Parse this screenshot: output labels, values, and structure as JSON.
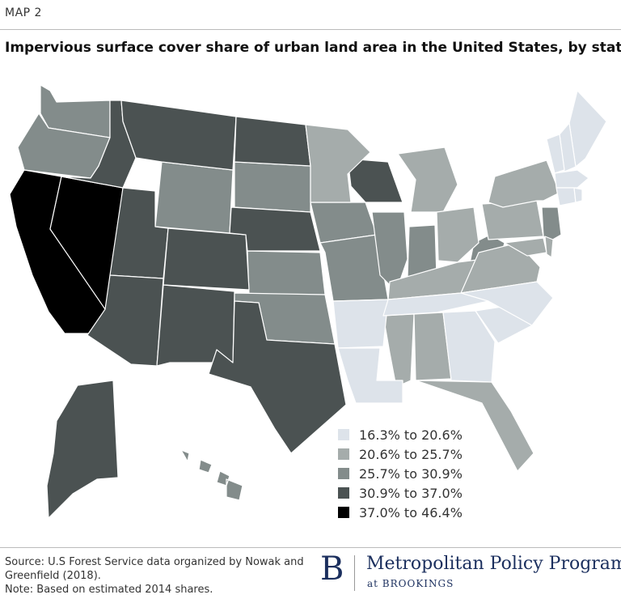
{
  "header": {
    "kicker": "MAP 2",
    "title": "Impervious surface cover share of urban land area in the United States, by state"
  },
  "legend": [
    {
      "label": "16.3% to 20.6%",
      "color": "#dde3ea"
    },
    {
      "label": "20.6% to 25.7%",
      "color": "#a5acab"
    },
    {
      "label": "25.7% to 30.9%",
      "color": "#838c8b"
    },
    {
      "label": "30.9% to 37.0%",
      "color": "#4b5252"
    },
    {
      "label": "37.0% to 46.4%",
      "color": "#000000"
    }
  ],
  "states": [
    {
      "id": "CA",
      "bin": 4
    },
    {
      "id": "NV",
      "bin": 4
    },
    {
      "id": "WA",
      "bin": 2
    },
    {
      "id": "OR",
      "bin": 2
    },
    {
      "id": "WY",
      "bin": 2
    },
    {
      "id": "SD",
      "bin": 2
    },
    {
      "id": "KS",
      "bin": 2
    },
    {
      "id": "OK",
      "bin": 2
    },
    {
      "id": "IA",
      "bin": 2
    },
    {
      "id": "MO",
      "bin": 2
    },
    {
      "id": "IL",
      "bin": 2
    },
    {
      "id": "IN",
      "bin": 2
    },
    {
      "id": "NJ",
      "bin": 2
    },
    {
      "id": "WV",
      "bin": 2
    },
    {
      "id": "HI",
      "bin": 2
    },
    {
      "id": "ID",
      "bin": 3
    },
    {
      "id": "MT",
      "bin": 3
    },
    {
      "id": "ND",
      "bin": 3
    },
    {
      "id": "UT",
      "bin": 3
    },
    {
      "id": "CO",
      "bin": 3
    },
    {
      "id": "NE",
      "bin": 3
    },
    {
      "id": "AZ",
      "bin": 3
    },
    {
      "id": "NM",
      "bin": 3
    },
    {
      "id": "TX",
      "bin": 3
    },
    {
      "id": "WI",
      "bin": 3
    },
    {
      "id": "AK",
      "bin": 3
    },
    {
      "id": "MN",
      "bin": 1
    },
    {
      "id": "MI",
      "bin": 1
    },
    {
      "id": "OH",
      "bin": 1
    },
    {
      "id": "KY",
      "bin": 1
    },
    {
      "id": "PA",
      "bin": 1
    },
    {
      "id": "NY",
      "bin": 1
    },
    {
      "id": "VA",
      "bin": 1
    },
    {
      "id": "MS",
      "bin": 1
    },
    {
      "id": "AL",
      "bin": 1
    },
    {
      "id": "FL",
      "bin": 1
    },
    {
      "id": "MD",
      "bin": 1
    },
    {
      "id": "DE",
      "bin": 1
    },
    {
      "id": "AR",
      "bin": 0
    },
    {
      "id": "LA",
      "bin": 0
    },
    {
      "id": "TN",
      "bin": 0
    },
    {
      "id": "GA",
      "bin": 0
    },
    {
      "id": "SC",
      "bin": 0
    },
    {
      "id": "NC",
      "bin": 0
    },
    {
      "id": "ME",
      "bin": 0
    },
    {
      "id": "NH",
      "bin": 0
    },
    {
      "id": "VT",
      "bin": 0
    },
    {
      "id": "MA",
      "bin": 0
    },
    {
      "id": "CT",
      "bin": 0
    },
    {
      "id": "RI",
      "bin": 0
    }
  ],
  "footer": {
    "source": "Source: U.S Forest Service data organized by Nowak and Greenfield (2018).",
    "note": "Note: Based on estimated 2014 shares.",
    "logo_letter": "B",
    "logo_name": "Metropolitan Policy Program",
    "logo_sub": "at BROOKINGS"
  }
}
